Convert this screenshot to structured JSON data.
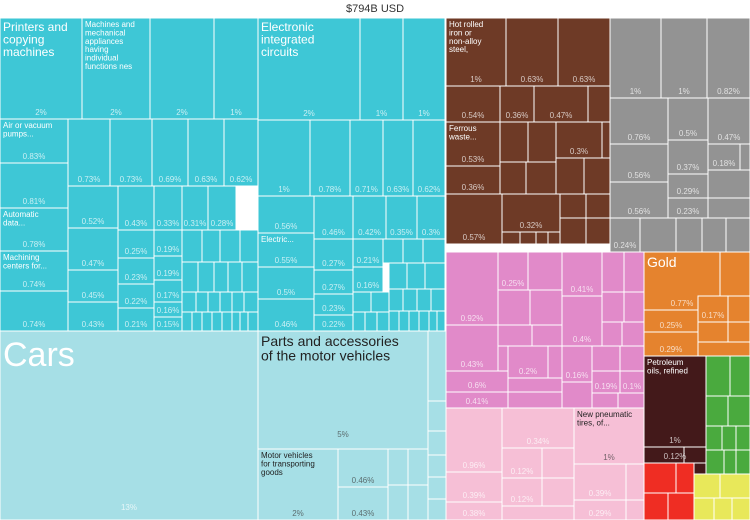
{
  "title": "$794B USD",
  "chart_data": {
    "type": "treemap",
    "title": "$794B USD",
    "unit": "% of total",
    "colors": {
      "machinery": "#3ec7d6",
      "vehicles": "#a6dfe6",
      "metals": "#6e3a26",
      "gray": "#939393",
      "pink_dark": "#e18ac9",
      "pink_light": "#f6bfd6",
      "orange": "#e5832e",
      "dark_brown": "#43191a",
      "green": "#4aaa3e",
      "red": "#ef2d23",
      "yellow": "#e8e85a"
    },
    "tiles": [
      {
        "label": "Cars",
        "value": "13%",
        "group": "vehicles"
      },
      {
        "label": "Parts and accessories of the motor vehicles",
        "value": "5%",
        "group": "vehicles"
      },
      {
        "label": "Motor vehicles for transporting goods",
        "value": "2%",
        "group": "vehicles"
      },
      {
        "label": "",
        "value": "0.46%",
        "group": "vehicles"
      },
      {
        "label": "",
        "value": "0.43%",
        "group": "vehicles"
      },
      {
        "label": "Printers and copying machines",
        "value": "2%",
        "group": "machinery"
      },
      {
        "label": "Machines and mechanical appliances having individual functions nes",
        "value": "2%",
        "group": "machinery"
      },
      {
        "label": "",
        "value": "2%",
        "group": "machinery"
      },
      {
        "label": "",
        "value": "1%",
        "group": "machinery"
      },
      {
        "label": "Electronic integrated circuits",
        "value": "2%",
        "group": "machinery"
      },
      {
        "label": "",
        "value": "1%",
        "group": "machinery"
      },
      {
        "label": "",
        "value": "1%",
        "group": "machinery"
      },
      {
        "label": "Air or vacuum pumps...",
        "value": "0.83%",
        "group": "machinery"
      },
      {
        "label": "",
        "value": "0.81%",
        "group": "machinery"
      },
      {
        "label": "Automatic data...",
        "value": "0.78%",
        "group": "machinery"
      },
      {
        "label": "Machining centers for...",
        "value": "0.74%",
        "group": "machinery"
      },
      {
        "label": "",
        "value": "0.74%",
        "group": "machinery"
      },
      {
        "label": "",
        "value": "0.73%",
        "group": "machinery"
      },
      {
        "label": "",
        "value": "0.73%",
        "group": "machinery"
      },
      {
        "label": "",
        "value": "0.69%",
        "group": "machinery"
      },
      {
        "label": "",
        "value": "0.63%",
        "group": "machinery"
      },
      {
        "label": "",
        "value": "0.62%",
        "group": "machinery"
      },
      {
        "label": "",
        "value": "0.52%",
        "group": "machinery"
      },
      {
        "label": "",
        "value": "0.47%",
        "group": "machinery"
      },
      {
        "label": "",
        "value": "0.45%",
        "group": "machinery"
      },
      {
        "label": "",
        "value": "0.43%",
        "group": "machinery"
      },
      {
        "label": "",
        "value": "0.43%",
        "group": "machinery"
      },
      {
        "label": "",
        "value": "0.33%",
        "group": "machinery"
      },
      {
        "label": "",
        "value": "0.31%",
        "group": "machinery"
      },
      {
        "label": "",
        "value": "0.28%",
        "group": "machinery"
      },
      {
        "label": "",
        "value": "0.25%",
        "group": "machinery"
      },
      {
        "label": "",
        "value": "0.23%",
        "group": "machinery"
      },
      {
        "label": "",
        "value": "0.22%",
        "group": "machinery"
      },
      {
        "label": "",
        "value": "0.21%",
        "group": "machinery"
      },
      {
        "label": "",
        "value": "0.19%",
        "group": "machinery"
      },
      {
        "label": "",
        "value": "0.19%",
        "group": "machinery"
      },
      {
        "label": "",
        "value": "0.17%",
        "group": "machinery"
      },
      {
        "label": "",
        "value": "0.16%",
        "group": "machinery"
      },
      {
        "label": "",
        "value": "0.15%",
        "group": "machinery"
      },
      {
        "label": "",
        "value": "1%",
        "group": "machinery"
      },
      {
        "label": "",
        "value": "0.78%",
        "group": "machinery"
      },
      {
        "label": "",
        "value": "0.71%",
        "group": "machinery"
      },
      {
        "label": "",
        "value": "0.63%",
        "group": "machinery"
      },
      {
        "label": "",
        "value": "0.62%",
        "group": "machinery"
      },
      {
        "label": "",
        "value": "0.56%",
        "group": "machinery"
      },
      {
        "label": "",
        "value": "0.46%",
        "group": "machinery"
      },
      {
        "label": "",
        "value": "0.42%",
        "group": "machinery"
      },
      {
        "label": "",
        "value": "0.35%",
        "group": "machinery"
      },
      {
        "label": "",
        "value": "0.3%",
        "group": "machinery"
      },
      {
        "label": "Electric...",
        "value": "0.55%",
        "group": "machinery"
      },
      {
        "label": "",
        "value": "0.5%",
        "group": "machinery"
      },
      {
        "label": "",
        "value": "0.46%",
        "group": "machinery"
      },
      {
        "label": "",
        "value": "0.27%",
        "group": "machinery"
      },
      {
        "label": "",
        "value": "0.27%",
        "group": "machinery"
      },
      {
        "label": "",
        "value": "0.23%",
        "group": "machinery"
      },
      {
        "label": "",
        "value": "0.22%",
        "group": "machinery"
      },
      {
        "label": "",
        "value": "0.21%",
        "group": "machinery"
      },
      {
        "label": "",
        "value": "0.16%",
        "group": "machinery"
      },
      {
        "label": "Hot rolled iron or non-alloy steel, coil,w...",
        "value": "1%",
        "group": "metals"
      },
      {
        "label": "",
        "value": "0.63%",
        "group": "metals"
      },
      {
        "label": "",
        "value": "0.63%",
        "group": "metals"
      },
      {
        "label": "",
        "value": "0.54%",
        "group": "metals"
      },
      {
        "label": "",
        "value": "0.36%",
        "group": "metals"
      },
      {
        "label": "",
        "value": "0.47%",
        "group": "metals"
      },
      {
        "label": "Ferrous waste...",
        "value": "0.53%",
        "group": "metals"
      },
      {
        "label": "",
        "value": "0.36%",
        "group": "metals"
      },
      {
        "label": "",
        "value": "0.3%",
        "group": "metals"
      },
      {
        "label": "",
        "value": "0.57%",
        "group": "metals"
      },
      {
        "label": "",
        "value": "0.32%",
        "group": "metals"
      },
      {
        "label": "",
        "value": "1%",
        "group": "gray"
      },
      {
        "label": "",
        "value": "1%",
        "group": "gray"
      },
      {
        "label": "",
        "value": "0.82%",
        "group": "gray"
      },
      {
        "label": "",
        "value": "0.76%",
        "group": "gray"
      },
      {
        "label": "",
        "value": "0.5%",
        "group": "gray"
      },
      {
        "label": "",
        "value": "0.47%",
        "group": "gray"
      },
      {
        "label": "",
        "value": "0.56%",
        "group": "gray"
      },
      {
        "label": "",
        "value": "0.37%",
        "group": "gray"
      },
      {
        "label": "",
        "value": "0.18%",
        "group": "gray"
      },
      {
        "label": "",
        "value": "0.29%",
        "group": "gray"
      },
      {
        "label": "",
        "value": "0.56%",
        "group": "gray"
      },
      {
        "label": "",
        "value": "0.23%",
        "group": "gray"
      },
      {
        "label": "",
        "value": "0.24%",
        "group": "gray"
      },
      {
        "label": "",
        "value": "0.92%",
        "group": "pink_dark"
      },
      {
        "label": "",
        "value": "0.25%",
        "group": "pink_dark"
      },
      {
        "label": "",
        "value": "0.41%",
        "group": "pink_dark"
      },
      {
        "label": "",
        "value": "0.43%",
        "group": "pink_dark"
      },
      {
        "label": "",
        "value": "0.4%",
        "group": "pink_dark"
      },
      {
        "label": "",
        "value": "0.16%",
        "group": "pink_dark"
      },
      {
        "label": "",
        "value": "0.6%",
        "group": "pink_dark"
      },
      {
        "label": "",
        "value": "0.2%",
        "group": "pink_dark"
      },
      {
        "label": "",
        "value": "0.19%",
        "group": "pink_dark"
      },
      {
        "label": "",
        "value": "0.1%",
        "group": "pink_dark"
      },
      {
        "label": "",
        "value": "0.41%",
        "group": "pink_dark"
      },
      {
        "label": "",
        "value": "0.96%",
        "group": "pink_light"
      },
      {
        "label": "",
        "value": "0.34%",
        "group": "pink_light"
      },
      {
        "label": "New pneumatic tires, of...",
        "value": "1%",
        "group": "pink_light"
      },
      {
        "label": "",
        "value": "0.12%",
        "group": "pink_light"
      },
      {
        "label": "",
        "value": "0.39%",
        "group": "pink_light"
      },
      {
        "label": "",
        "value": "0.12%",
        "group": "pink_light"
      },
      {
        "label": "",
        "value": "0.39%",
        "group": "pink_light"
      },
      {
        "label": "",
        "value": "0.38%",
        "group": "pink_light"
      },
      {
        "label": "",
        "value": "0.29%",
        "group": "pink_light"
      },
      {
        "label": "Gold",
        "value": "0.77%",
        "group": "orange"
      },
      {
        "label": "",
        "value": "0.25%",
        "group": "orange"
      },
      {
        "label": "",
        "value": "0.17%",
        "group": "orange"
      },
      {
        "label": "",
        "value": "0.29%",
        "group": "orange"
      },
      {
        "label": "Petroleum oils, refined",
        "value": "1%",
        "group": "dark_brown"
      },
      {
        "label": "",
        "value": "0.12%",
        "group": "dark_brown"
      }
    ]
  }
}
